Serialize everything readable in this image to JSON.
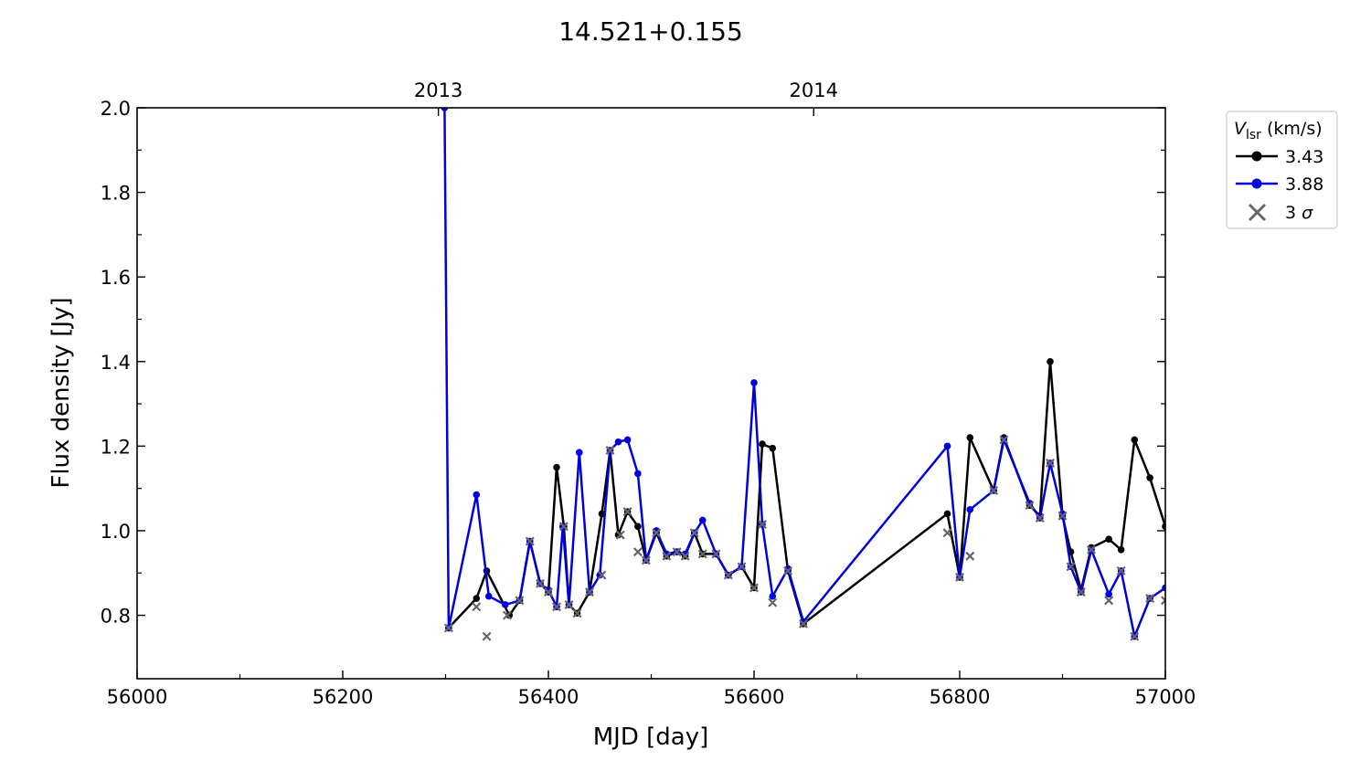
{
  "chart_data": {
    "type": "line",
    "title": "14.521+0.155",
    "xlabel": "MJD [day]",
    "ylabel": "Flux density [Jy]",
    "xlim": [
      56000,
      57000
    ],
    "ylim": [
      0.65,
      2.0
    ],
    "xticks": [
      56000,
      56200,
      56400,
      56600,
      56800,
      57000
    ],
    "xticks_minor": [
      56100,
      56300,
      56500,
      56700,
      56900
    ],
    "yticks": [
      0.8,
      1.0,
      1.2,
      1.4,
      1.6,
      1.8,
      2.0
    ],
    "yticks_minor": [
      0.9,
      1.1,
      1.3,
      1.5,
      1.7,
      1.9
    ],
    "top_axis": {
      "ticks": [
        {
          "x": 56293,
          "label": "2013"
        },
        {
          "x": 56658,
          "label": "2014"
        }
      ]
    },
    "grid": false,
    "legend": {
      "placement": "right, outside",
      "title_symbol": "V",
      "title_subscript": "lsr",
      "title_unit": " (km/s)",
      "entries": [
        "3.43",
        "3.88",
        "3"
      ],
      "sigma_symbol": "σ"
    },
    "colors": {
      "series_1": "#000000",
      "series_2": "#0000dd",
      "sigma": "#666666"
    },
    "series": [
      {
        "name": "3.43",
        "color": "#000000",
        "x": [
          56303,
          56330,
          56340,
          56362,
          56372,
          56382,
          56392,
          56400,
          56408,
          56415,
          56420,
          56428,
          56440,
          56452,
          56460,
          56468,
          56477,
          56487,
          56495,
          56505,
          56515,
          56525,
          56533,
          56542,
          56550,
          56563,
          56575,
          56588,
          56600,
          56608,
          56618,
          56633,
          56648,
          56788,
          56800,
          56810,
          56833,
          56843,
          56868,
          56878,
          56888,
          56900,
          56908,
          56918,
          56928,
          56945,
          56957,
          56970,
          56985,
          57000
        ],
        "y": [
          0.77,
          0.84,
          0.905,
          0.8,
          0.835,
          0.975,
          0.875,
          0.855,
          1.15,
          1.01,
          0.825,
          0.805,
          0.855,
          1.04,
          1.19,
          0.99,
          1.045,
          1.01,
          0.93,
          0.995,
          0.94,
          0.95,
          0.94,
          0.995,
          0.945,
          0.945,
          0.895,
          0.915,
          0.865,
          1.205,
          1.195,
          0.905,
          0.78,
          1.04,
          0.89,
          1.22,
          1.095,
          1.22,
          1.06,
          1.035,
          1.4,
          1.035,
          0.95,
          0.86,
          0.96,
          0.98,
          0.955,
          1.215,
          1.125,
          1.01
        ]
      },
      {
        "name": "3.88",
        "color": "#0000dd",
        "x": [
          56299,
          56303,
          56330,
          56342,
          56358,
          56372,
          56382,
          56392,
          56400,
          56408,
          56414,
          56420,
          56430,
          56440,
          56450,
          56460,
          56468,
          56477,
          56487,
          56495,
          56505,
          56515,
          56525,
          56533,
          56542,
          56550,
          56563,
          56575,
          56588,
          56600,
          56608,
          56618,
          56633,
          56648,
          56788,
          56800,
          56810,
          56833,
          56843,
          56868,
          56878,
          56888,
          56900,
          56908,
          56918,
          56928,
          56945,
          56957,
          56970,
          56985,
          57000
        ],
        "y": [
          2.0,
          0.77,
          1.085,
          0.845,
          0.825,
          0.835,
          0.975,
          0.875,
          0.86,
          0.82,
          1.01,
          0.825,
          1.185,
          0.855,
          0.895,
          1.19,
          1.21,
          1.215,
          1.135,
          0.93,
          1.0,
          0.945,
          0.95,
          0.945,
          0.995,
          1.025,
          0.945,
          0.895,
          0.915,
          1.35,
          1.015,
          0.845,
          0.91,
          0.785,
          1.2,
          0.89,
          1.05,
          1.095,
          1.215,
          1.065,
          1.03,
          1.16,
          1.04,
          0.915,
          0.855,
          0.955,
          0.85,
          0.905,
          0.75,
          0.84,
          0.865
        ]
      }
    ],
    "sigma_points": {
      "name": "3",
      "x": [
        56303,
        56330,
        56340,
        56360,
        56372,
        56382,
        56392,
        56400,
        56408,
        56415,
        56420,
        56428,
        56440,
        56452,
        56460,
        56470,
        56477,
        56487,
        56495,
        56505,
        56515,
        56525,
        56533,
        56542,
        56550,
        56563,
        56575,
        56588,
        56600,
        56608,
        56618,
        56633,
        56648,
        56788,
        56800,
        56810,
        56833,
        56843,
        56868,
        56878,
        56888,
        56900,
        56908,
        56918,
        56928,
        56945,
        56957,
        56970,
        56985,
        57000
      ],
      "y": [
        0.77,
        0.82,
        0.75,
        0.8,
        0.835,
        0.975,
        0.875,
        0.855,
        0.82,
        1.01,
        0.825,
        0.805,
        0.855,
        0.895,
        1.19,
        0.99,
        1.045,
        0.95,
        0.93,
        0.995,
        0.94,
        0.95,
        0.94,
        0.995,
        0.945,
        0.945,
        0.895,
        0.915,
        0.865,
        1.015,
        0.83,
        0.905,
        0.78,
        0.995,
        0.89,
        0.94,
        1.095,
        1.215,
        1.06,
        1.03,
        1.16,
        1.035,
        0.915,
        0.855,
        0.955,
        0.835,
        0.905,
        0.75,
        0.84,
        0.835
      ]
    }
  }
}
